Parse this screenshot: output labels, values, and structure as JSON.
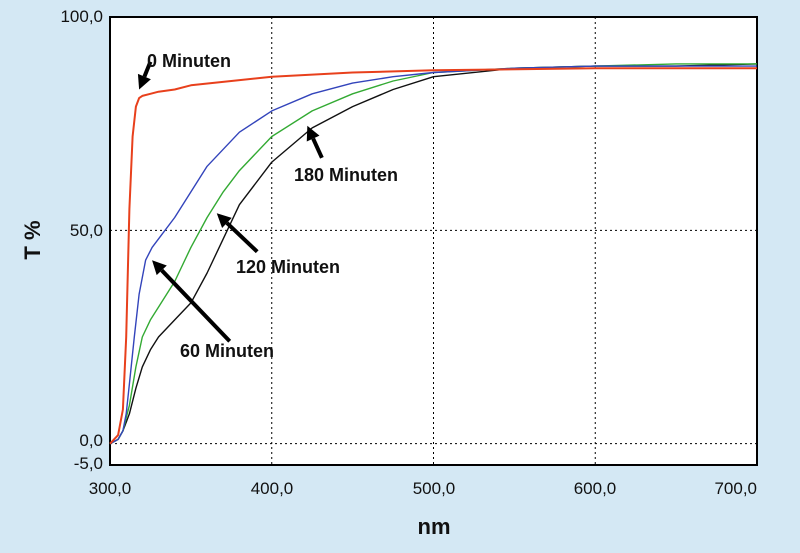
{
  "chart_data": {
    "type": "line",
    "xlabel": "nm",
    "ylabel": "T %",
    "xlim": [
      300,
      700
    ],
    "ylim": [
      -5,
      100
    ],
    "x_ticks": [
      "300,0",
      "400,0",
      "500,0",
      "600,0",
      "700,0"
    ],
    "y_ticks": [
      "-5,0",
      "0,0",
      "50,0",
      "100,0"
    ],
    "grid": "dashed at x=400,500,600 and y=0,50",
    "background": "#d4e8f4",
    "plot_background": "#ffffff",
    "series": [
      {
        "name": "0 Minuten",
        "color": "#e8401c",
        "x": [
          300,
          305,
          308,
          310,
          312,
          314,
          316,
          318,
          320,
          325,
          330,
          340,
          350,
          375,
          400,
          450,
          500,
          600,
          700
        ],
        "y": [
          0,
          2,
          8,
          25,
          55,
          72,
          79,
          81,
          81.5,
          82,
          82.5,
          83,
          84,
          85,
          86,
          87,
          87.5,
          88,
          88
        ]
      },
      {
        "name": "60 Minuten",
        "color": "#3344bb",
        "x": [
          300,
          305,
          308,
          310,
          312,
          315,
          318,
          322,
          326,
          330,
          340,
          350,
          360,
          380,
          400,
          425,
          450,
          475,
          500,
          550,
          600,
          650,
          700
        ],
        "y": [
          0,
          1,
          3,
          7,
          14,
          25,
          35,
          43,
          46,
          48,
          53,
          59,
          65,
          73,
          78,
          82,
          84.5,
          86,
          87,
          88,
          88.5,
          88.5,
          88.5
        ]
      },
      {
        "name": "120 Minuten",
        "color": "#33aa33",
        "x": [
          300,
          305,
          308,
          312,
          316,
          320,
          325,
          330,
          340,
          350,
          360,
          370,
          380,
          400,
          425,
          450,
          475,
          500,
          550,
          600,
          650,
          700
        ],
        "y": [
          0,
          1,
          3,
          9,
          18,
          25,
          29,
          32,
          38,
          46,
          53,
          59,
          64,
          72,
          78,
          82,
          85,
          87,
          88,
          88.5,
          89,
          89
        ]
      },
      {
        "name": "180 Minuten",
        "color": "#111111",
        "x": [
          300,
          305,
          308,
          312,
          316,
          320,
          325,
          330,
          340,
          350,
          360,
          370,
          380,
          400,
          425,
          450,
          475,
          500,
          550,
          600,
          650,
          700
        ],
        "y": [
          0,
          1,
          3,
          7,
          13,
          18,
          22,
          25,
          29,
          33,
          40,
          48,
          56,
          66,
          74,
          79,
          83,
          86,
          88,
          88.5,
          88.5,
          89
        ]
      }
    ],
    "annotations": [
      {
        "text": "0 Minuten",
        "arrow_tail": [
          325,
          89.5
        ],
        "arrow_head": [
          318,
          83
        ]
      },
      {
        "text": "180 Minuten",
        "arrow_tail": [
          431,
          67
        ],
        "arrow_head": [
          422,
          74.5
        ]
      },
      {
        "text": "120 Minuten",
        "arrow_tail": [
          391,
          45
        ],
        "arrow_head": [
          366,
          54
        ]
      },
      {
        "text": "60 Minuten",
        "arrow_tail": [
          374,
          24
        ],
        "arrow_head": [
          326,
          43
        ]
      }
    ]
  }
}
